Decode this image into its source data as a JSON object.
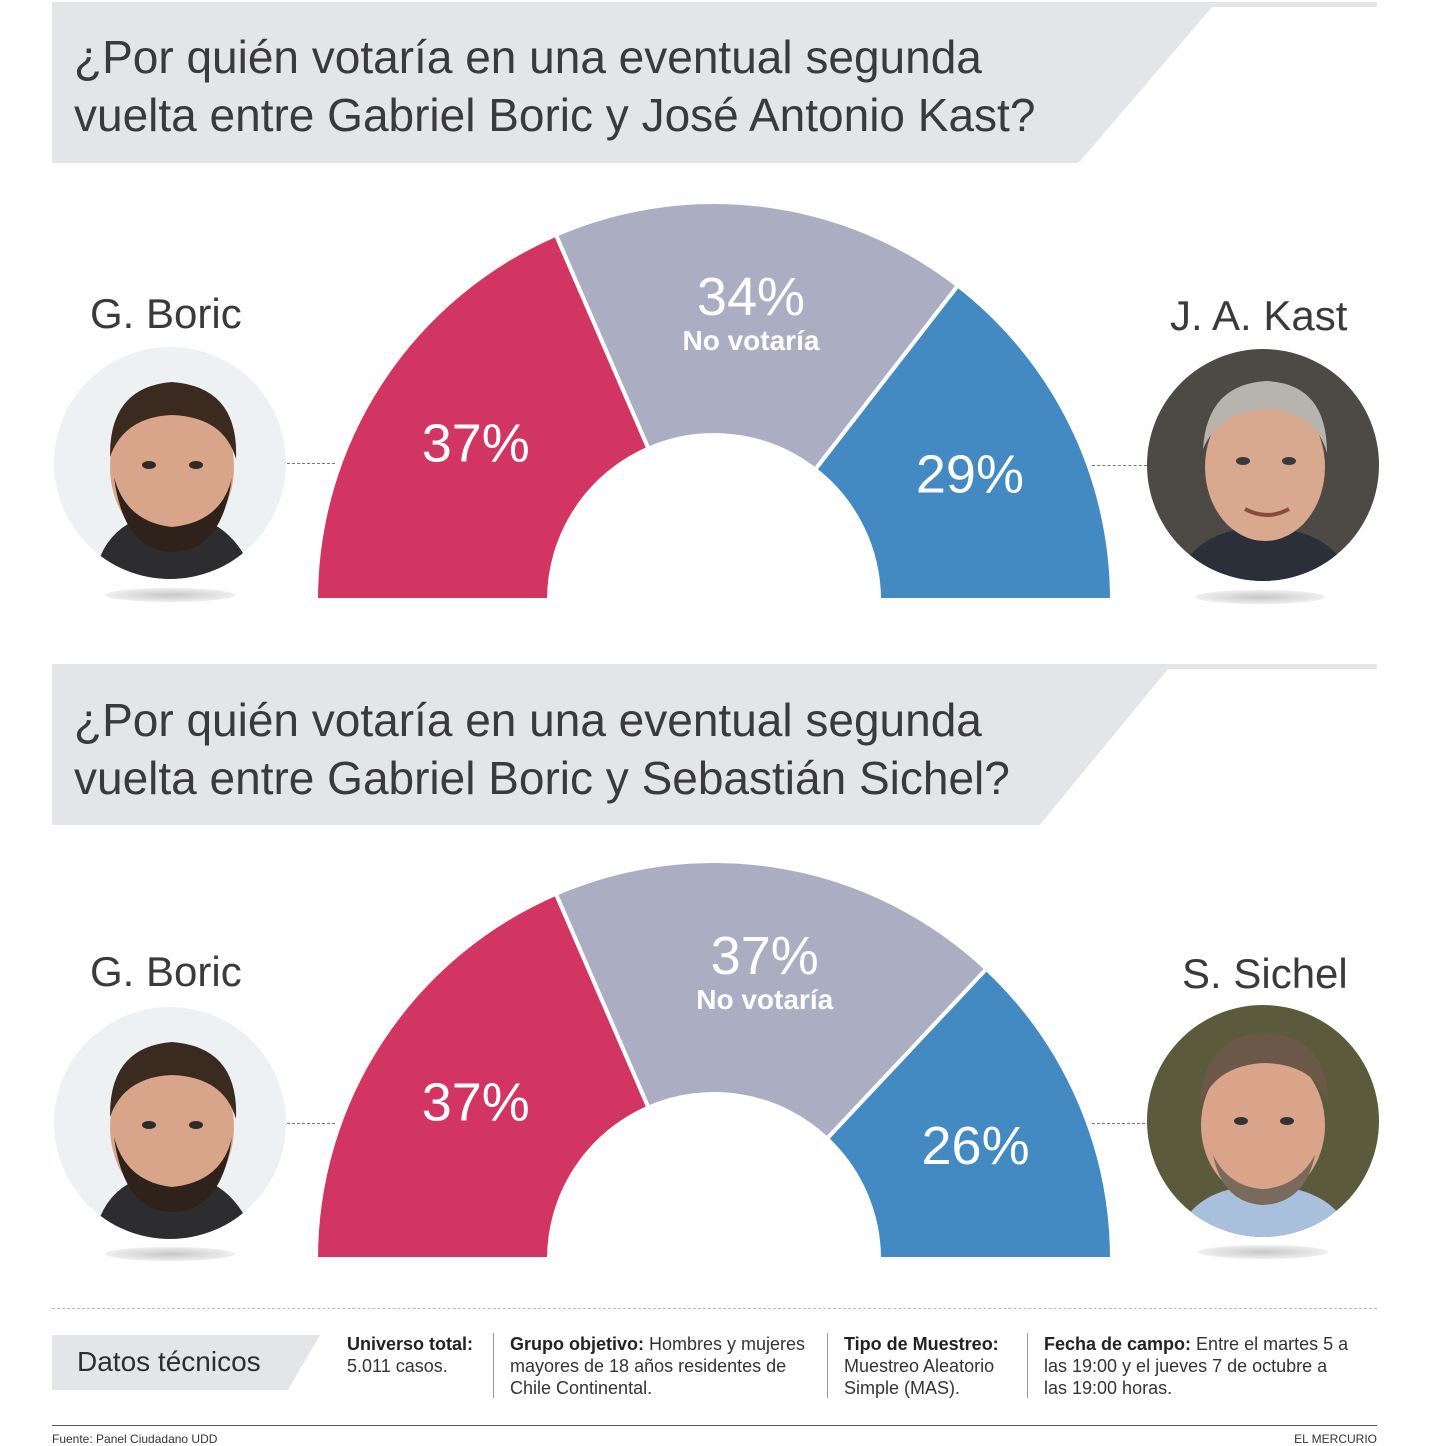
{
  "charts": [
    {
      "question": [
        "¿Por quién votaría en una eventual segunda",
        "vuelta entre Gabriel Boric y José Antonio Kast?"
      ],
      "left_name": "G. Boric",
      "right_name": "J. A. Kast",
      "pct_left": "37%",
      "pct_mid": "34%",
      "pct_right": "29%",
      "mid_label": "No votaría"
    },
    {
      "question": [
        "¿Por quién votaría en una eventual segunda",
        "vuelta entre Gabriel Boric y Sebastián Sichel?"
      ],
      "left_name": "G. Boric",
      "right_name": "S. Sichel",
      "pct_left": "37%",
      "pct_mid": "37%",
      "pct_right": "26%",
      "mid_label": "No votaría"
    }
  ],
  "chart_data": [
    {
      "type": "pie",
      "variant": "half-donut",
      "categories": [
        "G. Boric",
        "No votaría",
        "J. A. Kast"
      ],
      "values": [
        37,
        34,
        29
      ],
      "colors": [
        "#d23562",
        "#abaec2",
        "#448ac2"
      ]
    },
    {
      "type": "pie",
      "variant": "half-donut",
      "categories": [
        "G. Boric",
        "No votaría",
        "S. Sichel"
      ],
      "values": [
        37,
        37,
        26
      ],
      "colors": [
        "#d23562",
        "#abaec2",
        "#448ac2"
      ]
    }
  ],
  "tech": {
    "title": "Datos técnicos",
    "universo_label": "Universo total:",
    "universo_text": "5.011 casos.",
    "grupo_label": "Grupo objetivo:",
    "grupo_text_1": " Hombres y mujeres",
    "grupo_text_2": "mayores de 18 años residentes de",
    "grupo_text_3": "Chile Continental.",
    "tipo_label": "Tipo de Muestreo:",
    "tipo_text_1": "Muestreo Aleatorio",
    "tipo_text_2": "Simple (MAS).",
    "fecha_label": "Fecha de campo:",
    "fecha_text_1": " Entre el martes 5 a",
    "fecha_text_2": "las 19:00 y el jueves 7 de octubre a",
    "fecha_text_3": "las 19:00 horas."
  },
  "footer": {
    "source": "Fuente: Panel Ciudadano UDD",
    "brand": "EL MERCURIO"
  }
}
